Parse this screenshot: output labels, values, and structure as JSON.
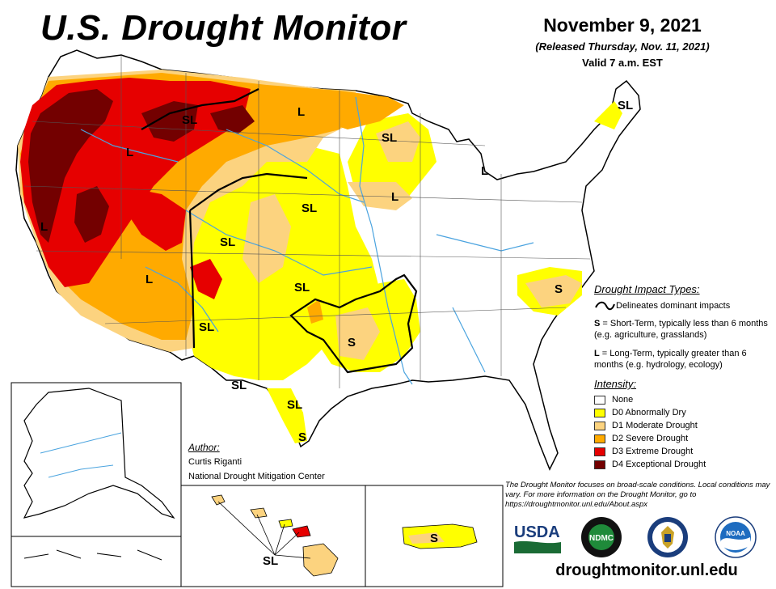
{
  "header": {
    "title": "U.S. Drought Monitor",
    "date": "November 9, 2021",
    "released": "(Released Thursday, Nov. 11, 2021)",
    "valid": "Valid 7 a.m. EST"
  },
  "map_labels": {
    "L_northwest": "L",
    "SL_montana": "SL",
    "L_northplains": "L",
    "SL_wisconsin": "SL",
    "SL_newengland": "SL",
    "L_michigan": "L",
    "L_idaho": "L",
    "L_illinois": "L",
    "SL_nebraska": "SL",
    "SL_colorado": "SL",
    "L_california": "L",
    "L_arizona": "L",
    "SL_oklahoma": "SL",
    "SL_newmexico": "SL",
    "S_arkansas": "S",
    "S_carolina": "S",
    "SL_westtexas": "SL",
    "SL_southtexas": "SL",
    "S_texastip": "S",
    "SL_hawaii": "SL",
    "S_puertorico": "S"
  },
  "impact_types": {
    "heading": "Drought Impact Types:",
    "line_text": "Delineates dominant impacts",
    "s_code": "S",
    "s_text": "= Short-Term, typically less than 6 months (e.g. agriculture, grasslands)",
    "l_code": "L",
    "l_text": "= Long-Term, typically greater than 6 months (e.g. hydrology, ecology)"
  },
  "intensity": {
    "heading": "Intensity:",
    "items": [
      {
        "label": "None",
        "color": "#ffffff"
      },
      {
        "label": "D0 Abnormally Dry",
        "color": "#ffff00"
      },
      {
        "label": "D1 Moderate Drought",
        "color": "#fcd37f"
      },
      {
        "label": "D2 Severe Drought",
        "color": "#ffaa00"
      },
      {
        "label": "D3 Extreme Drought",
        "color": "#e60000"
      },
      {
        "label": "D4 Exceptional Drought",
        "color": "#730000"
      }
    ]
  },
  "author": {
    "heading": "Author:",
    "name": "Curtis Riganti",
    "org": "National Drought Mitigation Center"
  },
  "disclaimer": "The Drought Monitor focuses on broad-scale conditions. Local conditions may vary. For more information on the Drought Monitor, go to https://droughtmonitor.unl.edu/About.aspx",
  "logos": {
    "usda": "USDA",
    "ndmc": "NDMC",
    "noaa": "NOAA"
  },
  "website": "droughtmonitor.unl.edu",
  "colors": {
    "none": "#ffffff",
    "d0": "#ffff00",
    "d1": "#fcd37f",
    "d2": "#ffaa00",
    "d3": "#e60000",
    "d4": "#730000",
    "water": "#4aa3df"
  }
}
